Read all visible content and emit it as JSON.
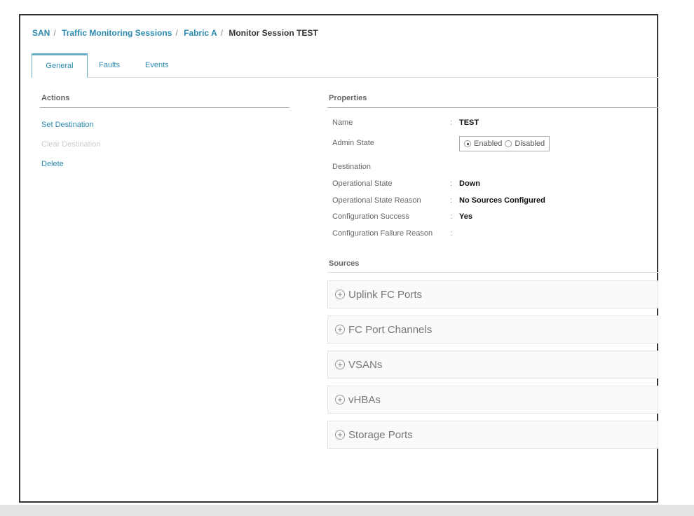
{
  "breadcrumb": [
    {
      "label": "SAN",
      "link": true
    },
    {
      "label": "Traffic Monitoring Sessions",
      "link": true
    },
    {
      "label": "Fabric A",
      "link": true
    },
    {
      "label": "Monitor Session TEST",
      "link": false
    }
  ],
  "tabs": [
    {
      "label": "General",
      "active": true
    },
    {
      "label": "Faults"
    },
    {
      "label": "Events"
    }
  ],
  "actions": {
    "title": "Actions",
    "items": [
      {
        "label": "Set Destination",
        "enabled": true
      },
      {
        "label": "Clear Destination",
        "enabled": false
      },
      {
        "label": "Delete",
        "enabled": true
      }
    ]
  },
  "properties": {
    "title": "Properties",
    "name_label": "Name",
    "name_value": "TEST",
    "admin_label": "Admin State",
    "admin_options": [
      "Enabled",
      "Disabled"
    ],
    "admin_selected": "Enabled",
    "destination_label": "Destination",
    "op_state_label": "Operational State",
    "op_state_value": "Down",
    "op_reason_label": "Operational State Reason",
    "op_reason_value": "No Sources Configured",
    "config_success_label": "Configuration Success",
    "config_success_value": "Yes",
    "config_failure_label": "Configuration Failure Reason",
    "config_failure_value": ""
  },
  "sources": {
    "title": "Sources",
    "items": [
      "Uplink FC Ports",
      "FC Port Channels",
      "VSANs",
      "vHBAs",
      "Storage Ports"
    ]
  },
  "colors": {
    "link": "#2b8ab0",
    "tab_border": "#6aaecb"
  }
}
